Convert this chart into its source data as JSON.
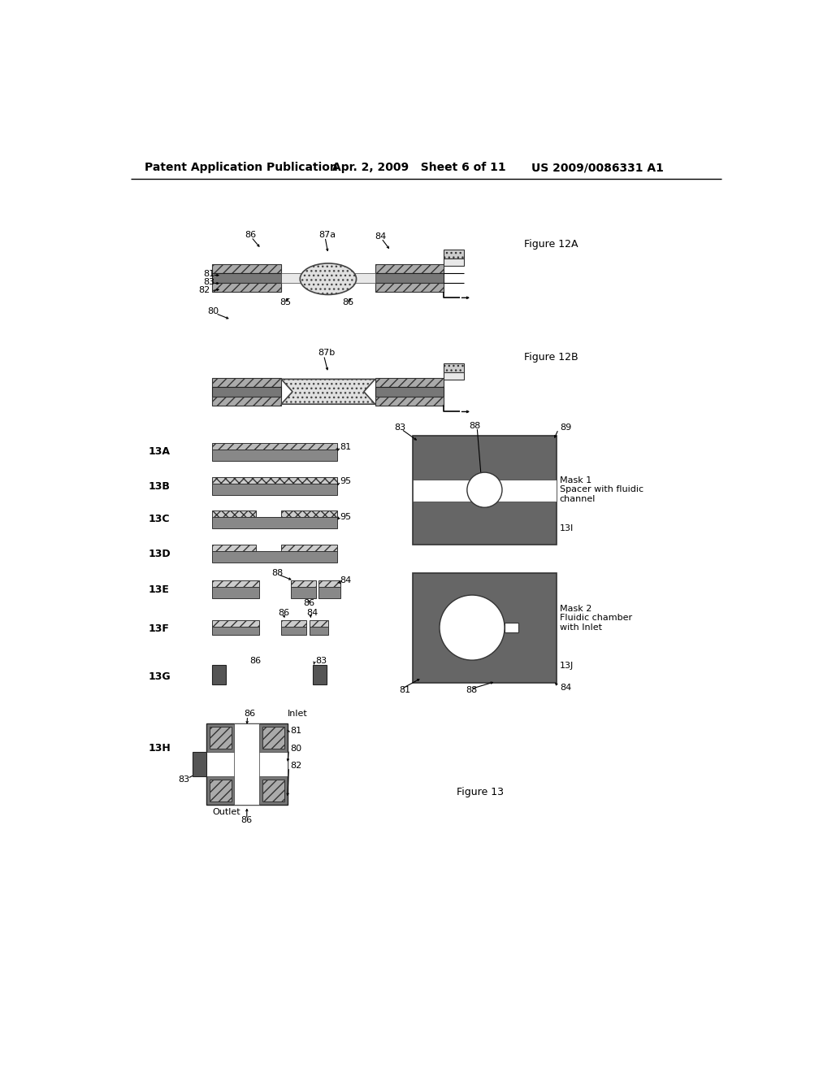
{
  "page_title_left": "Patent Application Publication",
  "page_title_mid": "Apr. 2, 2009   Sheet 6 of 11",
  "page_title_right": "US 2009/0086331 A1",
  "bg_color": "#ffffff",
  "fig12a_label": "Figure 12A",
  "fig12b_label": "Figure 12B",
  "fig13_label": "Figure 13",
  "mask1_text": "Mask 1\nSpacer with fluidic\nchannel",
  "mask1_ref": "13I",
  "mask2_text": "Mask 2\nFluidic chamber\nwith Inlet",
  "mask2_ref": "13J"
}
